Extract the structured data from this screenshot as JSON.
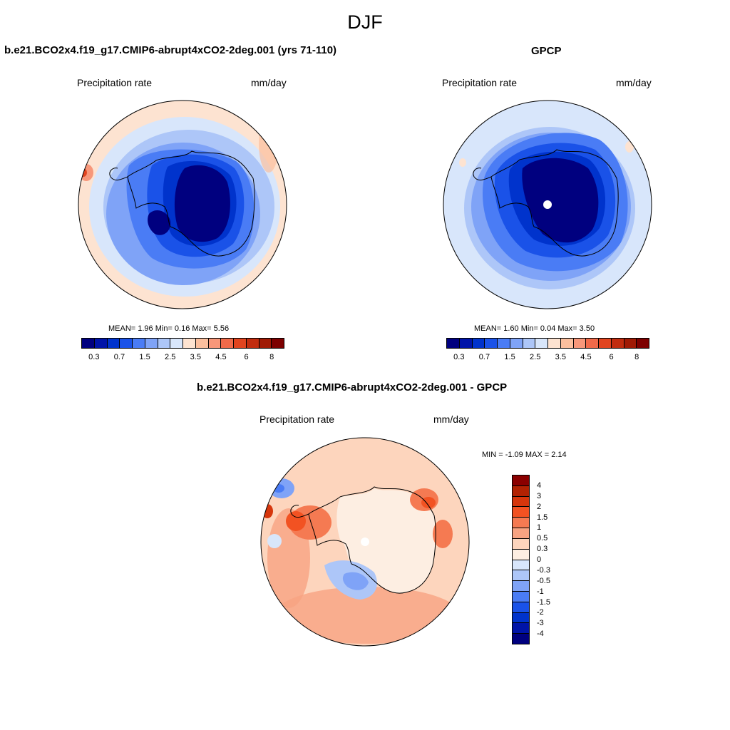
{
  "figure": {
    "title": "DJF"
  },
  "panels": {
    "model": {
      "title": "b.e21.BCO2x4.f19_g17.CMIP6-abrupt4xCO2-2deg.001 (yrs 71-110)",
      "variable": "Precipitation rate",
      "units": "mm/day",
      "stats": "MEAN=   1.96  Min=   0.16  Max=   5.56"
    },
    "obs": {
      "title": "GPCP",
      "variable": "Precipitation rate",
      "units": "mm/day",
      "stats": "MEAN=   1.60  Min=   0.04  Max=   3.50"
    },
    "diff": {
      "title": "b.e21.BCO2x4.f19_g17.CMIP6-abrupt4xCO2-2deg.001 - GPCP",
      "variable": "Precipitation rate",
      "units": "mm/day",
      "stats": "MIN =  -1.09 MAX =   2.14"
    }
  },
  "colorbars": {
    "abs": {
      "colors": [
        "#00007f",
        "#0014a8",
        "#0033cc",
        "#1a52e8",
        "#4a7cf5",
        "#7fa3f7",
        "#adc6f8",
        "#d8e6fb",
        "#fde3d1",
        "#fbbf9e",
        "#f7977a",
        "#f06a4a",
        "#e1441f",
        "#c12c0f",
        "#a01a05",
        "#7d0000"
      ],
      "ticks": [
        "0.3",
        "0.7",
        "1.5",
        "2.5",
        "3.5",
        "4.5",
        "6",
        "8"
      ]
    },
    "diff": {
      "colors": [
        "#8b0000",
        "#b22203",
        "#d6360c",
        "#f25222",
        "#f57a52",
        "#f8a382",
        "#fdd5bd",
        "#fdeee2",
        "#d8e6fb",
        "#adc6f8",
        "#7fa3f7",
        "#4a7cf5",
        "#1a52e8",
        "#0033cc",
        "#0014a8",
        "#00007f"
      ],
      "ticks": [
        "4",
        "3",
        "2",
        "1.5",
        "1",
        "0.5",
        "0.3",
        "0",
        "-0.3",
        "-0.5",
        "-1",
        "-1.5",
        "-2",
        "-3",
        "-4"
      ]
    }
  }
}
